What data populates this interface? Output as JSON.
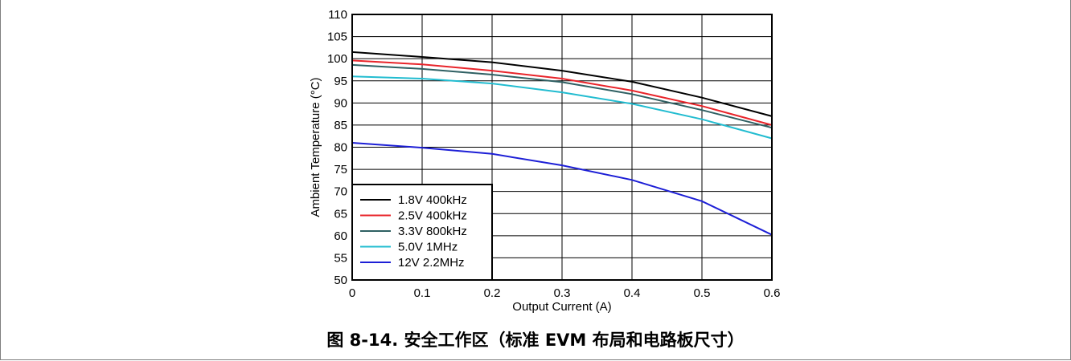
{
  "chart_data": {
    "type": "line",
    "title": "",
    "xlabel": "Output Current (A)",
    "ylabel": "Ambient Temperature (°C)",
    "xlim": [
      0,
      0.6
    ],
    "ylim": [
      50,
      110
    ],
    "xticks": [
      "0",
      "0.1",
      "0.2",
      "0.3",
      "0.4",
      "0.5",
      "0.6"
    ],
    "yticks": [
      "50",
      "55",
      "60",
      "65",
      "70",
      "75",
      "80",
      "85",
      "90",
      "95",
      "100",
      "105",
      "110"
    ],
    "grid": true,
    "legend_position": "bottom-left",
    "x": [
      0,
      0.1,
      0.2,
      0.3,
      0.4,
      0.5,
      0.6
    ],
    "series": [
      {
        "name": "1.8V 400kHz",
        "color": "#000000",
        "values": [
          101.5,
          100.4,
          99.2,
          97.3,
          94.8,
          91.2,
          87.0
        ]
      },
      {
        "name": "2.5V 400kHz",
        "color": "#e8242a",
        "values": [
          99.6,
          98.7,
          97.3,
          95.5,
          92.8,
          89.3,
          85.0
        ]
      },
      {
        "name": "3.3V 800kHz",
        "color": "#2f6063",
        "values": [
          98.6,
          97.7,
          96.4,
          94.7,
          92.0,
          88.4,
          84.4
        ]
      },
      {
        "name": "5.0V 1MHz",
        "color": "#22bcd0",
        "values": [
          96.0,
          95.5,
          94.4,
          92.4,
          89.8,
          86.3,
          82.0
        ]
      },
      {
        "name": "12V 2.2MHz",
        "color": "#1d1fd6",
        "values": [
          81.0,
          79.9,
          78.5,
          75.9,
          72.6,
          67.8,
          60.2
        ]
      }
    ]
  },
  "caption": "图 8-14. 安全工作区（标准 EVM 布局和电路板尺寸）"
}
